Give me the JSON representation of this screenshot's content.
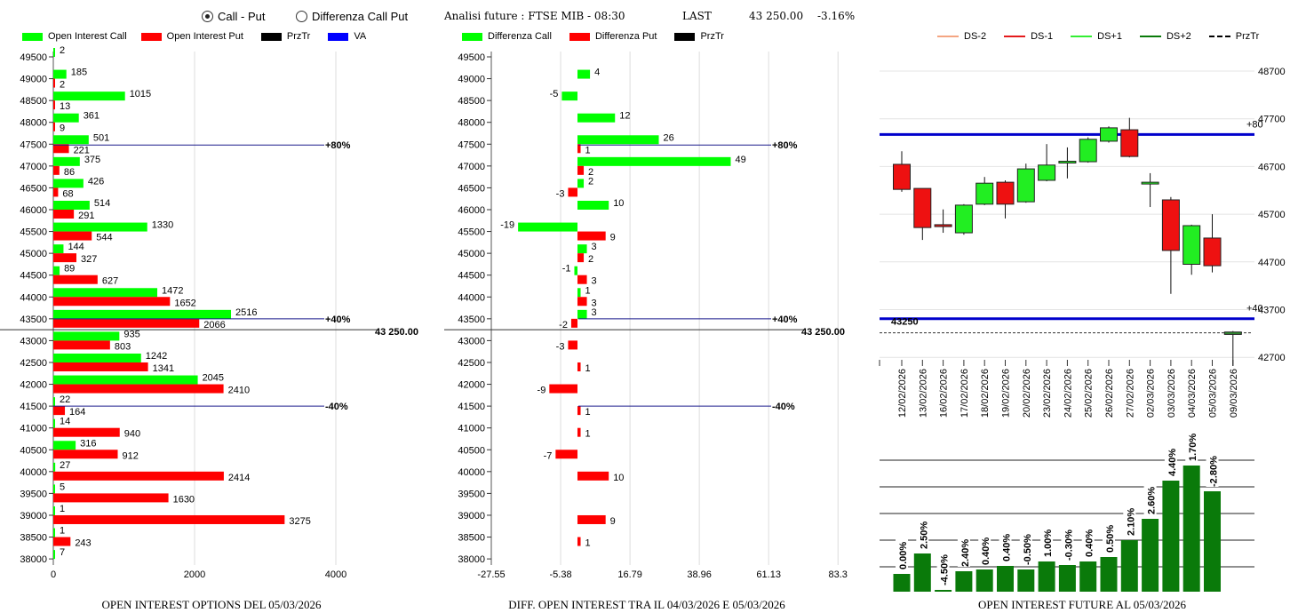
{
  "header": {
    "radio_call_put": "Call - Put",
    "radio_diff": "Differenza Call Put",
    "analysis": "Analisi future : FTSE MIB - 08:30",
    "last_label": "LAST",
    "last_value": "43 250.00",
    "last_change": "-3.16%"
  },
  "colors": {
    "call": "#00ff00",
    "put": "#ff0000",
    "przTr": "#000000",
    "va": "#0000ff",
    "ds_minus2": "#f4a582",
    "ds_minus1": "#e41a1c",
    "ds_plus1": "#33ee33",
    "ds_plus2": "#0a7a0a",
    "bar": "#0a7a0a"
  },
  "chart_data": [
    {
      "type": "bar",
      "orientation": "horizontal",
      "title": "OPEN INTEREST OPTIONS DEL 05/03/2026",
      "legend": [
        "Open Interest Call",
        "Open Interest Put",
        "PrzTr",
        "VA"
      ],
      "xlim": [
        0,
        4000
      ],
      "xticks": [
        "0",
        "2000",
        "4000"
      ],
      "categories": [
        49500,
        49000,
        48500,
        48000,
        47500,
        47000,
        46500,
        46000,
        45500,
        45000,
        44500,
        44000,
        43500,
        43000,
        42500,
        42000,
        41500,
        41000,
        40500,
        40000,
        39500,
        39000,
        38500,
        38000
      ],
      "series": [
        {
          "name": "Open Interest Call",
          "values": [
            2,
            185,
            1015,
            361,
            501,
            375,
            426,
            514,
            1330,
            144,
            89,
            1472,
            2516,
            935,
            1242,
            2045,
            22,
            14,
            316,
            27,
            5,
            1,
            1,
            7
          ]
        },
        {
          "name": "Open Interest Put",
          "values": [
            null,
            2,
            13,
            9,
            221,
            86,
            68,
            291,
            544,
            327,
            627,
            1652,
            2066,
            803,
            1341,
            2410,
            164,
            940,
            912,
            2414,
            1630,
            3275,
            243,
            null
          ]
        }
      ],
      "va_lines": [
        {
          "label": "+80%",
          "strike": 47400
        },
        {
          "label": "+40%",
          "strike": 43500
        },
        {
          "label": "-40%",
          "strike": 41500
        }
      ],
      "price_line": {
        "value": 43250,
        "label": "43 250.00"
      }
    },
    {
      "type": "bar",
      "orientation": "horizontal",
      "title": "DIFF. OPEN INTEREST TRA IL 04/03/2026 E 05/03/2026",
      "legend": [
        "Differenza Call",
        "Differenza Put",
        "PrzTr"
      ],
      "xlim": [
        -27.55,
        83.3
      ],
      "xticks": [
        "-27.55",
        "-5.38",
        "16.79",
        "38.96",
        "61.13",
        "83.3"
      ],
      "categories": [
        49500,
        49000,
        48500,
        48000,
        47500,
        47000,
        46500,
        46000,
        45500,
        45000,
        44500,
        44000,
        43500,
        43000,
        42500,
        42000,
        41500,
        41000,
        40500,
        40000,
        39500,
        39000,
        38500,
        38000
      ],
      "series": [
        {
          "name": "Differenza Call",
          "values": [
            null,
            4,
            -5,
            12,
            26,
            49,
            2,
            10,
            -19,
            3,
            -1,
            1,
            3,
            null,
            null,
            null,
            null,
            null,
            null,
            null,
            null,
            null,
            null,
            null
          ]
        },
        {
          "name": "Differenza Put",
          "values": [
            null,
            null,
            null,
            null,
            1,
            2,
            -3,
            null,
            9,
            2,
            3,
            3,
            -2,
            -3,
            1,
            -9,
            1,
            1,
            -7,
            10,
            null,
            9,
            1,
            null
          ]
        }
      ],
      "va_lines": [
        {
          "label": "+80%",
          "strike": 47400
        },
        {
          "label": "+40%",
          "strike": 43500
        },
        {
          "label": "-40%",
          "strike": 41500
        }
      ],
      "price_line": {
        "value": 43250,
        "label": "43 250.00"
      }
    },
    {
      "type": "candlestick",
      "legend": [
        "DS-2",
        "DS-1",
        "DS+1",
        "DS+2",
        "PrzTr"
      ],
      "ylim": [
        42700,
        48700
      ],
      "yticks": [
        "48700",
        "47700",
        "46700",
        "45700",
        "44700",
        "43700",
        "42700"
      ],
      "dates": [
        "12/02/2026",
        "13/02/2026",
        "16/02/2026",
        "17/02/2026",
        "18/02/2026",
        "19/02/2026",
        "20/02/2026",
        "23/02/2026",
        "24/02/2026",
        "25/02/2026",
        "26/02/2026",
        "27/02/2026",
        "02/03/2026",
        "03/03/2026",
        "04/03/2026",
        "05/03/2026",
        "09/03/2026"
      ],
      "ohlc": [
        [
          46745,
          47020,
          46170,
          46220
        ],
        [
          46240,
          46240,
          45160,
          45420
        ],
        [
          45480,
          45800,
          45310,
          45440
        ],
        [
          45310,
          45910,
          45270,
          45890
        ],
        [
          45910,
          46480,
          45890,
          46350
        ],
        [
          46370,
          46410,
          45610,
          45910
        ],
        [
          45960,
          46760,
          45940,
          46650
        ],
        [
          46410,
          47170,
          46390,
          46730
        ],
        [
          46800,
          47100,
          46450,
          46810
        ],
        [
          46800,
          47310,
          46780,
          47270
        ],
        [
          47230,
          47540,
          47200,
          47510
        ],
        [
          47470,
          47720,
          46890,
          46910
        ],
        [
          46370,
          46560,
          45850,
          46370
        ],
        [
          46000,
          46060,
          44030,
          44940
        ],
        [
          44650,
          45480,
          44430,
          45460
        ],
        [
          45200,
          45700,
          44480,
          44620
        ],
        [
          43180,
          43250,
          42520,
          43230
        ]
      ],
      "va_lines": [
        {
          "label": "+80",
          "value": 47370
        },
        {
          "label": "+40",
          "value": 43510
        }
      ],
      "price_line": {
        "value": 43250,
        "label": "43250"
      }
    },
    {
      "type": "bar",
      "title": "OPEN INTEREST FUTURE AL 05/03/2026",
      "categories": [
        "12/02/2026",
        "13/02/2026",
        "16/02/2026",
        "17/02/2026",
        "18/02/2026",
        "19/02/2026",
        "20/02/2026",
        "23/02/2026",
        "24/02/2026",
        "25/02/2026",
        "26/02/2026",
        "27/02/2026",
        "02/03/2026",
        "03/03/2026",
        "04/03/2026",
        "05/03/2026"
      ],
      "values_relative": [
        2.0,
        4.3,
        0.2,
        2.3,
        2.5,
        2.9,
        2.5,
        3.4,
        3.0,
        3.4,
        3.9,
        5.8,
        8.2,
        12.5,
        14.2,
        11.3
      ],
      "grid": [
        2.8,
        5.8,
        8.8,
        11.8,
        14.8
      ],
      "labels": [
        "0.00%",
        "2.50%",
        "-4.50%",
        "2.40%",
        "0.40%",
        "0.40%",
        "-0.50%",
        "1.00%",
        "-0.30%",
        "0.40%",
        "0.50%",
        "2.10%",
        "2.60%",
        "4.40%",
        "1.70%",
        "-2.80%"
      ]
    }
  ]
}
